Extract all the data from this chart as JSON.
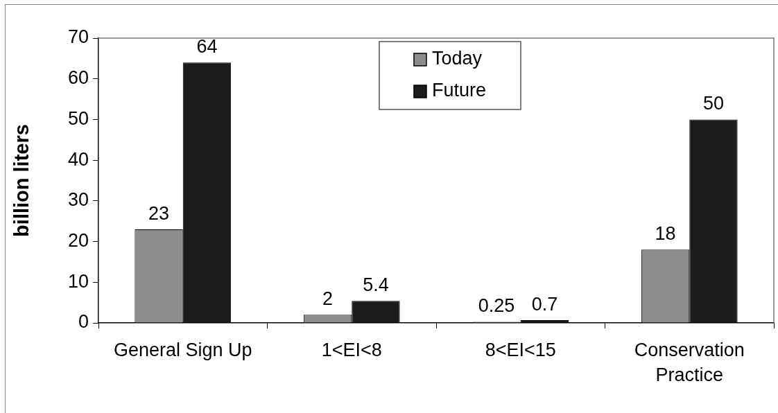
{
  "chart_data": {
    "type": "bar",
    "ylabel": "billion liters",
    "categories": [
      "General Sign Up",
      "1<EI<8",
      "8<EI<15",
      "Conservation Practice"
    ],
    "series": [
      {
        "name": "Today",
        "color": "#8c8c8c",
        "values": [
          23,
          2,
          0.25,
          18
        ]
      },
      {
        "name": "Future",
        "color": "#1c1c1c",
        "values": [
          64,
          5.4,
          0.7,
          50
        ]
      }
    ],
    "ylim": [
      0,
      70
    ],
    "yticks": [
      0,
      10,
      20,
      30,
      40,
      50,
      60,
      70
    ],
    "legend": "top",
    "data_labels": true
  }
}
